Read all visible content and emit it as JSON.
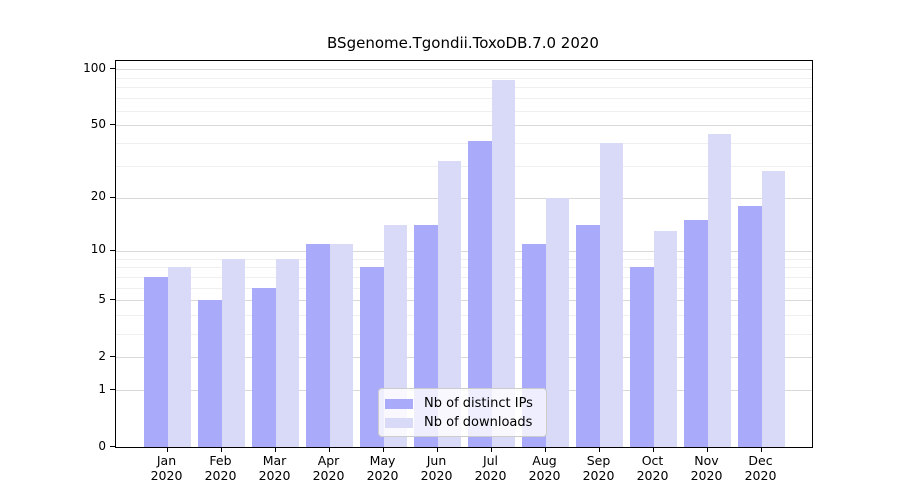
{
  "title": "BSgenome.Tgondii.ToxoDB.7.0 2020",
  "chart_data": {
    "type": "bar",
    "title": "BSgenome.Tgondii.ToxoDB.7.0 2020",
    "yscale": "log1p",
    "categories": [
      "Jan",
      "Feb",
      "Mar",
      "Apr",
      "May",
      "Jun",
      "Jul",
      "Aug",
      "Sep",
      "Oct",
      "Nov",
      "Dec"
    ],
    "category_year": "2020",
    "series": [
      {
        "name": "Nb of distinct IPs",
        "color": "#aaaafa",
        "values": [
          7,
          5,
          6,
          11,
          8,
          14,
          41,
          11,
          14,
          8,
          15,
          18
        ]
      },
      {
        "name": "Nb of downloads",
        "color": "#d9d9f8",
        "values": [
          8,
          9,
          9,
          11,
          14,
          32,
          88,
          20,
          40,
          13,
          45,
          28
        ]
      }
    ],
    "yticks": [
      0,
      1,
      2,
      5,
      10,
      20,
      50,
      100
    ],
    "minor_yticks": [
      3,
      4,
      6,
      7,
      8,
      9,
      30,
      40,
      60,
      70,
      80,
      90
    ],
    "ylim": [
      0,
      110.7
    ],
    "grid": true,
    "legend_position": "lower center"
  },
  "colors": {
    "bar_distinct_ips": "#aaaafa",
    "bar_downloads": "#d9d9f8",
    "grid_major": "#d9d9d9",
    "grid_minor": "#efefef",
    "axis": "#000000",
    "background": "#ffffff",
    "legend_border": "#cccccc"
  }
}
